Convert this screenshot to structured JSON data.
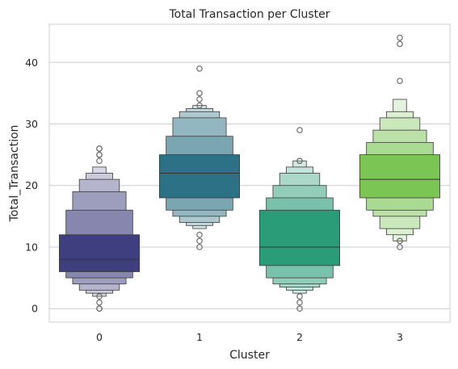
{
  "chart_data": {
    "type": "boxen",
    "title": "Total Transaction per Cluster",
    "xlabel": "Cluster",
    "ylabel": "Total_Transaction",
    "categories": [
      "0",
      "1",
      "2",
      "3"
    ],
    "ylim": [
      -2.2,
      46.2
    ],
    "yticks": [
      0,
      10,
      20,
      30,
      40
    ],
    "grid": "horizontal",
    "colors": [
      "#3f3f7f",
      "#2c7185",
      "#2a9c78",
      "#7ac554"
    ],
    "series": [
      {
        "category": "0",
        "median": 8,
        "levels": [
          [
            6,
            12
          ],
          [
            5,
            16
          ],
          [
            4,
            19
          ],
          [
            3,
            21
          ],
          [
            2.5,
            22
          ],
          [
            2,
            23
          ]
        ],
        "outliers": [
          0,
          0,
          1,
          2,
          24,
          25,
          25,
          26,
          26
        ]
      },
      {
        "category": "1",
        "median": 22,
        "levels": [
          [
            18,
            25
          ],
          [
            16,
            28
          ],
          [
            15,
            31
          ],
          [
            14,
            32
          ],
          [
            13.5,
            32.5
          ],
          [
            13,
            33
          ]
        ],
        "outliers": [
          10,
          11,
          12,
          33,
          34,
          35,
          39
        ]
      },
      {
        "category": "2",
        "median": 10,
        "levels": [
          [
            7,
            16
          ],
          [
            5,
            18
          ],
          [
            4,
            20
          ],
          [
            3.5,
            22
          ],
          [
            3,
            23
          ],
          [
            2.5,
            24
          ]
        ],
        "outliers": [
          0,
          1,
          2,
          24,
          24,
          29
        ]
      },
      {
        "category": "3",
        "median": 21,
        "levels": [
          [
            18,
            25
          ],
          [
            16,
            27
          ],
          [
            15,
            29
          ],
          [
            13,
            31
          ],
          [
            12,
            32
          ],
          [
            11,
            34
          ]
        ],
        "outliers": [
          10,
          11,
          11,
          37,
          43,
          44
        ]
      }
    ]
  }
}
